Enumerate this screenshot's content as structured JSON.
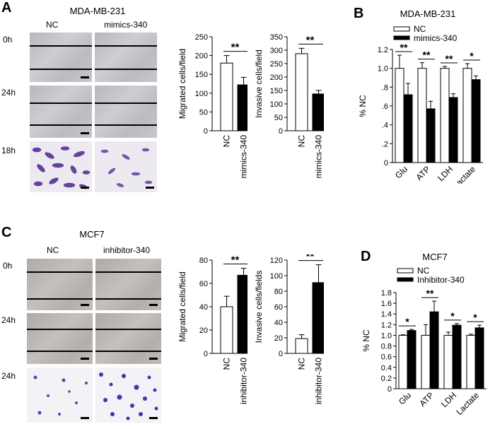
{
  "panels": {
    "A": {
      "letter": "A",
      "title": "MDA-MB-231",
      "col1": "NC",
      "col2": "mimics-340",
      "rows": [
        "0h",
        "24h",
        "18h"
      ]
    },
    "B": {
      "letter": "B",
      "title": "MDA-MB-231"
    },
    "C": {
      "letter": "C",
      "title": "MCF7",
      "col1": "NC",
      "col2": "inhibitor-340",
      "rows": [
        "0h",
        "24h",
        "24h"
      ]
    },
    "D": {
      "letter": "D",
      "title": "MCF7"
    }
  },
  "colors": {
    "nc_bar": "#ffffff",
    "treated_bar": "#000000",
    "axis": "#000000"
  },
  "chart_data": [
    {
      "id": "A-migrated",
      "type": "bar",
      "categories": [
        "NC",
        "mimics-340"
      ],
      "values": [
        180,
        122
      ],
      "errors": [
        20,
        20
      ],
      "ylabel": "Migrated cells/field",
      "ylim": [
        0,
        250
      ],
      "yticks": [
        0,
        50,
        100,
        150,
        200,
        250
      ],
      "significance": "**"
    },
    {
      "id": "A-invasive",
      "type": "bar",
      "categories": [
        "NC",
        "mimics-340"
      ],
      "values": [
        287,
        137
      ],
      "errors": [
        20,
        13
      ],
      "ylabel": "Invasive cells/field",
      "ylim": [
        0,
        350
      ],
      "yticks": [
        0,
        50,
        100,
        150,
        200,
        250,
        300,
        350
      ],
      "significance": "**"
    },
    {
      "id": "B",
      "type": "bar",
      "categories": [
        "Glu",
        "ATP",
        "LDH",
        "Lactate"
      ],
      "series": [
        {
          "name": "NC",
          "values": [
            1.0,
            1.0,
            1.0,
            1.0
          ],
          "errors": [
            0.14,
            0.06,
            0.02,
            0.05
          ]
        },
        {
          "name": "mimics-340",
          "values": [
            0.72,
            0.57,
            0.69,
            0.88
          ],
          "errors": [
            0.12,
            0.08,
            0.04,
            0.04
          ]
        }
      ],
      "ylabel": "% NC",
      "ylim": [
        0,
        1.2
      ],
      "yticks": [
        0,
        0.2,
        0.4,
        0.6,
        0.8,
        1.0,
        1.2
      ],
      "ytick_labels": [
        "0",
        ".2",
        ".4",
        ".6",
        ".8",
        "1.0",
        "1.2"
      ],
      "significance": [
        "**",
        "**",
        "**",
        "*"
      ],
      "legend": "top"
    },
    {
      "id": "C-migrated",
      "type": "bar",
      "categories": [
        "NC",
        "inhibitor-340"
      ],
      "values": [
        40,
        67
      ],
      "errors": [
        9,
        6
      ],
      "ylabel": "Migrated cells/field",
      "ylim": [
        0,
        80
      ],
      "yticks": [
        0,
        20,
        40,
        60,
        80
      ],
      "significance": "**"
    },
    {
      "id": "C-invasive",
      "type": "bar",
      "categories": [
        "NC",
        "inhibitor-340"
      ],
      "values": [
        19,
        91
      ],
      "errors": [
        5,
        23
      ],
      "ylabel": "Invasive cells/fields",
      "ylim": [
        0,
        120
      ],
      "yticks": [
        0,
        20,
        40,
        60,
        80,
        100,
        120
      ],
      "significance": "**"
    },
    {
      "id": "D",
      "type": "bar",
      "categories": [
        "Glu",
        "ATP",
        "LDH",
        "Lactate"
      ],
      "series": [
        {
          "name": "NC",
          "values": [
            1.0,
            1.0,
            1.0,
            1.0
          ],
          "errors": [
            0.01,
            0.2,
            0.06,
            0.02
          ]
        },
        {
          "name": "Inhibitor-340",
          "values": [
            1.09,
            1.44,
            1.19,
            1.14
          ],
          "errors": [
            0.02,
            0.2,
            0.03,
            0.05
          ]
        }
      ],
      "ylabel": "% NC",
      "ylim": [
        0,
        1.8
      ],
      "yticks": [
        0,
        0.2,
        0.4,
        0.6,
        0.8,
        1.0,
        1.2,
        1.4,
        1.6,
        1.8
      ],
      "ytick_labels": [
        "0",
        "0.2",
        "0.4",
        "0.6",
        "0.8",
        "1.0",
        "1.2",
        "1.4",
        "1.6",
        "1.8"
      ],
      "significance": [
        "*",
        "**",
        "*",
        "*"
      ],
      "legend": "top"
    }
  ]
}
